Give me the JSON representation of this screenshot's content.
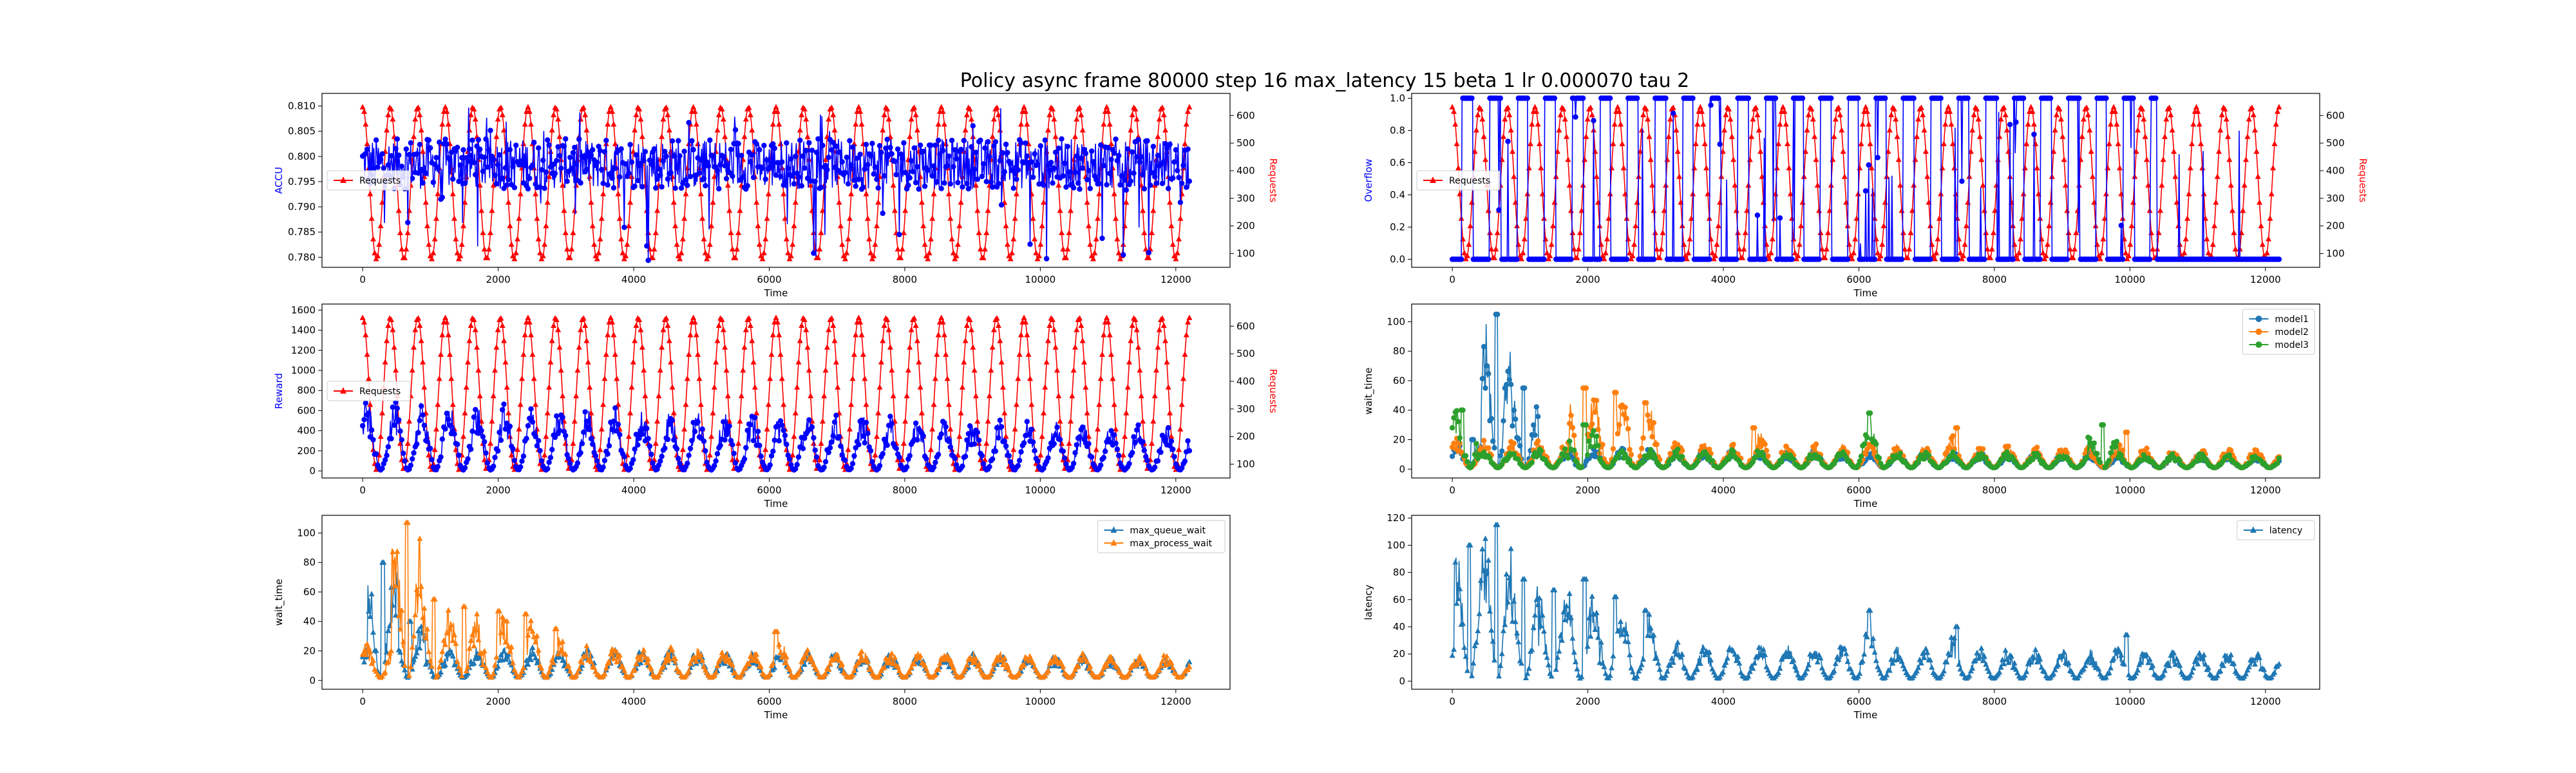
{
  "figure": {
    "title": "Policy async frame 80000 step 16 max_latency 15 beta 1 lr 0.000070 tau 2"
  },
  "colors": {
    "series_blue": "#0000ff",
    "series_red": "#ff0000",
    "tab_blue": "#1f77b4",
    "tab_orange": "#ff7f0e",
    "tab_green": "#2ca02c"
  },
  "chart_data": [
    {
      "id": "accu",
      "type": "line",
      "xlabel": "Time",
      "ylabel": "ACCU",
      "ylabel_color": "#0000ff",
      "y2label": "Requests",
      "y2label_color": "#ff0000",
      "xlim": [
        -600,
        12800
      ],
      "ylim": [
        0.778,
        0.8125
      ],
      "y2lim": [
        50,
        680
      ],
      "xticks": [
        "0",
        "2000",
        "4000",
        "6000",
        "8000",
        "10000",
        "12000"
      ],
      "yticks": [
        "0.780",
        "0.785",
        "0.790",
        "0.795",
        "0.800",
        "0.805",
        "0.810"
      ],
      "y2ticks": [
        "100",
        "200",
        "300",
        "400",
        "500",
        "600"
      ],
      "legend": {
        "placement": "center-left",
        "entries": [
          "Requests"
        ]
      },
      "series": [
        {
          "name": "Requests",
          "axis": "right",
          "color": "#ff0000",
          "marker": "^",
          "pattern": "sinusoid",
          "periods": 30,
          "min": 80,
          "max": 630,
          "x_start": 0,
          "x_end": 12200
        },
        {
          "axis": "left",
          "color": "#0000ff",
          "marker": "o",
          "pattern": "noise",
          "center": 0.7985,
          "spread": 0.005,
          "spike_min": 0.779,
          "spike_max": 0.81,
          "x_start": 0,
          "x_end": 12200
        }
      ]
    },
    {
      "id": "overflow",
      "type": "line",
      "xlabel": "Time",
      "ylabel": "Overflow",
      "ylabel_color": "#0000ff",
      "y2label": "Requests",
      "y2label_color": "#ff0000",
      "xlim": [
        -600,
        12800
      ],
      "ylim": [
        -0.05,
        1.03
      ],
      "y2lim": [
        50,
        680
      ],
      "xticks": [
        "0",
        "2000",
        "4000",
        "6000",
        "8000",
        "10000",
        "12000"
      ],
      "yticks": [
        "0.0",
        "0.2",
        "0.4",
        "0.6",
        "0.8",
        "1.0"
      ],
      "y2ticks": [
        "100",
        "200",
        "300",
        "400",
        "500",
        "600"
      ],
      "legend": {
        "placement": "center-left",
        "entries": [
          "Requests"
        ]
      },
      "series": [
        {
          "name": "Requests",
          "axis": "right",
          "color": "#ff0000",
          "marker": "^",
          "pattern": "sinusoid",
          "periods": 30,
          "min": 80,
          "max": 630,
          "x_start": 0,
          "x_end": 12200
        },
        {
          "axis": "left",
          "color": "#0000ff",
          "marker": "o",
          "pattern": "binary",
          "periods": 30,
          "x_start": 0,
          "x_end": 12200
        }
      ]
    },
    {
      "id": "reward",
      "type": "line",
      "xlabel": "Time",
      "ylabel": "Reward",
      "ylabel_color": "#0000ff",
      "y2label": "Requests",
      "y2label_color": "#ff0000",
      "xlim": [
        -600,
        12800
      ],
      "ylim": [
        -70,
        1660
      ],
      "y2lim": [
        50,
        680
      ],
      "xticks": [
        "0",
        "2000",
        "4000",
        "6000",
        "8000",
        "10000",
        "12000"
      ],
      "yticks": [
        "0",
        "200",
        "400",
        "600",
        "800",
        "1000",
        "1200",
        "1400",
        "1600"
      ],
      "y2ticks": [
        "100",
        "200",
        "300",
        "400",
        "500",
        "600"
      ],
      "legend": {
        "placement": "center-left",
        "entries": [
          "Requests"
        ]
      },
      "series": [
        {
          "name": "Requests",
          "axis": "right",
          "color": "#ff0000",
          "marker": "^",
          "pattern": "sinusoid",
          "periods": 30,
          "min": 80,
          "max": 630,
          "x_start": 0,
          "x_end": 12200
        },
        {
          "axis": "left",
          "color": "#0000ff",
          "marker": "o",
          "pattern": "bursts",
          "periods": 30,
          "base": 10,
          "peak": 700,
          "x_start": 0,
          "x_end": 12200
        }
      ]
    },
    {
      "id": "wait-time-models",
      "type": "line",
      "xlabel": "Time",
      "ylabel": "wait_time",
      "xlim": [
        -600,
        12800
      ],
      "ylim": [
        -6,
        112
      ],
      "xticks": [
        "0",
        "2000",
        "4000",
        "6000",
        "8000",
        "10000",
        "12000"
      ],
      "yticks": [
        "0",
        "20",
        "40",
        "60",
        "80",
        "100"
      ],
      "legend": {
        "placement": "top-right",
        "entries": [
          "model1",
          "model2",
          "model3"
        ]
      },
      "series": [
        {
          "name": "model1",
          "color": "#1f77b4",
          "marker": "o",
          "pattern": "bursts",
          "periods": 30,
          "base": 1,
          "peak": 14,
          "peaks": [
            [
              650,
              105
            ],
            [
              1050,
              55
            ],
            [
              300,
              20
            ]
          ],
          "x_start": 0,
          "x_end": 12200
        },
        {
          "name": "model2",
          "color": "#ff7f0e",
          "marker": "o",
          "pattern": "bursts",
          "periods": 30,
          "base": 1,
          "peak": 20,
          "peaks": [
            [
              1950,
              55
            ],
            [
              2400,
              52
            ],
            [
              2850,
              45
            ],
            [
              4450,
              28
            ],
            [
              7450,
              28
            ],
            [
              9950,
              25
            ]
          ],
          "x_start": 0,
          "x_end": 12200
        },
        {
          "name": "model3",
          "color": "#2ca02c",
          "marker": "o",
          "pattern": "bursts",
          "periods": 30,
          "base": 1,
          "peak": 14,
          "peaks": [
            [
              150,
              40
            ],
            [
              6150,
              38
            ],
            [
              9600,
              30
            ],
            [
              1950,
              30
            ]
          ],
          "x_start": 0,
          "x_end": 12200
        }
      ]
    },
    {
      "id": "wait-time-queue",
      "type": "line",
      "xlabel": "Time",
      "ylabel": "wait_time",
      "xlim": [
        -600,
        12800
      ],
      "ylim": [
        -6,
        112
      ],
      "xticks": [
        "0",
        "2000",
        "4000",
        "6000",
        "8000",
        "10000",
        "12000"
      ],
      "yticks": [
        "0",
        "20",
        "40",
        "60",
        "80",
        "100"
      ],
      "legend": {
        "placement": "top-right",
        "entries": [
          "max_queue_wait",
          "max_process_wait"
        ]
      },
      "series": [
        {
          "name": "max_queue_wait",
          "color": "#1f77b4",
          "marker": "^",
          "pattern": "bursts",
          "periods": 30,
          "base": 2,
          "peak": 22,
          "peaks": [
            [
              300,
              80
            ],
            [
              700,
              40
            ]
          ],
          "x_start": 0,
          "x_end": 12200
        },
        {
          "name": "max_process_wait",
          "color": "#ff7f0e",
          "marker": "^",
          "pattern": "bursts",
          "periods": 30,
          "base": 2,
          "peak": 24,
          "peaks": [
            [
              650,
              107
            ],
            [
              1050,
              55
            ],
            [
              1500,
              50
            ],
            [
              2000,
              47
            ],
            [
              2400,
              45
            ],
            [
              2850,
              35
            ],
            [
              6100,
              33
            ]
          ],
          "x_start": 0,
          "x_end": 12200
        }
      ]
    },
    {
      "id": "latency",
      "type": "line",
      "xlabel": "Time",
      "ylabel": "latency",
      "xlim": [
        -600,
        12800
      ],
      "ylim": [
        -6,
        122
      ],
      "xticks": [
        "0",
        "2000",
        "4000",
        "6000",
        "8000",
        "10000",
        "12000"
      ],
      "yticks": [
        "0",
        "20",
        "40",
        "60",
        "80",
        "100",
        "120"
      ],
      "legend": {
        "placement": "top-right",
        "entries": [
          "latency"
        ]
      },
      "series": [
        {
          "name": "latency",
          "color": "#1f77b4",
          "marker": "^",
          "pattern": "bursts",
          "periods": 30,
          "base": 2,
          "peak": 30,
          "peaks": [
            [
              250,
              100
            ],
            [
              650,
              115
            ],
            [
              1050,
              75
            ],
            [
              1500,
              67
            ],
            [
              1950,
              75
            ],
            [
              2400,
              62
            ],
            [
              2850,
              52
            ],
            [
              6150,
              52
            ],
            [
              7450,
              40
            ],
            [
              9950,
              34
            ]
          ],
          "x_start": 0,
          "x_end": 12200
        }
      ]
    }
  ]
}
